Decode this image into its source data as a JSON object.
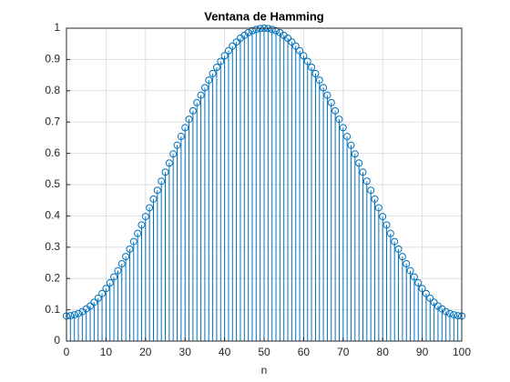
{
  "chart_data": {
    "type": "stem",
    "title": "Ventana de Hamming",
    "xlabel": "n",
    "x": [
      0,
      1,
      2,
      3,
      4,
      5,
      6,
      7,
      8,
      9,
      10,
      11,
      12,
      13,
      14,
      15,
      16,
      17,
      18,
      19,
      20,
      21,
      22,
      23,
      24,
      25,
      26,
      27,
      28,
      29,
      30,
      31,
      32,
      33,
      34,
      35,
      36,
      37,
      38,
      39,
      40,
      41,
      42,
      43,
      44,
      45,
      46,
      47,
      48,
      49,
      50,
      51,
      52,
      53,
      54,
      55,
      56,
      57,
      58,
      59,
      60,
      61,
      62,
      63,
      64,
      65,
      66,
      67,
      68,
      69,
      70,
      71,
      72,
      73,
      74,
      75,
      76,
      77,
      78,
      79,
      80,
      81,
      82,
      83,
      84,
      85,
      86,
      87,
      88,
      89,
      90,
      91,
      92,
      93,
      94,
      95,
      96,
      97,
      98,
      99,
      100
    ],
    "series": [
      {
        "color": "#0072bd",
        "values": [
          0.08,
          0.081,
          0.084,
          0.088,
          0.094,
          0.103,
          0.112,
          0.124,
          0.137,
          0.152,
          0.168,
          0.186,
          0.205,
          0.225,
          0.247,
          0.27,
          0.294,
          0.318,
          0.344,
          0.371,
          0.398,
          0.426,
          0.454,
          0.482,
          0.511,
          0.54,
          0.569,
          0.598,
          0.626,
          0.654,
          0.682,
          0.709,
          0.736,
          0.762,
          0.786,
          0.81,
          0.834,
          0.855,
          0.875,
          0.894,
          0.912,
          0.928,
          0.943,
          0.956,
          0.968,
          0.977,
          0.986,
          0.992,
          0.996,
          0.999,
          1.0,
          0.999,
          0.996,
          0.992,
          0.986,
          0.977,
          0.968,
          0.956,
          0.943,
          0.928,
          0.912,
          0.894,
          0.875,
          0.855,
          0.834,
          0.81,
          0.786,
          0.762,
          0.736,
          0.709,
          0.682,
          0.654,
          0.626,
          0.598,
          0.569,
          0.54,
          0.511,
          0.482,
          0.454,
          0.426,
          0.398,
          0.371,
          0.344,
          0.318,
          0.294,
          0.27,
          0.247,
          0.225,
          0.205,
          0.186,
          0.168,
          0.152,
          0.137,
          0.124,
          0.112,
          0.103,
          0.094,
          0.088,
          0.084,
          0.081,
          0.08
        ]
      }
    ],
    "xlim": [
      0,
      100
    ],
    "xticks": [
      0,
      10,
      20,
      30,
      40,
      50,
      60,
      70,
      80,
      90,
      100
    ],
    "ylim": [
      0,
      1
    ],
    "yticks": [
      0,
      0.1,
      0.2,
      0.3,
      0.4,
      0.5,
      0.6,
      0.7,
      0.8,
      0.9,
      1
    ],
    "grid": true
  }
}
